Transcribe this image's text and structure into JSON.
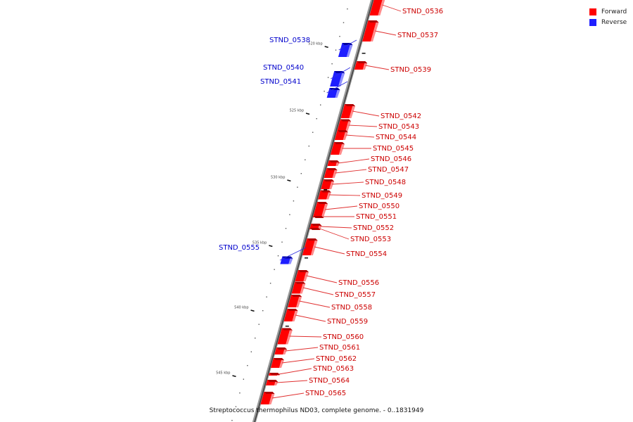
{
  "legend": {
    "forward_label": "Forward",
    "reverse_label": "Reverse",
    "forward_color": "#ff0000",
    "reverse_color": "#1e1eff"
  },
  "caption": "Streptococcus thermophilus ND03, complete genome. - 0..1831949",
  "ticks": [
    "520 kbp",
    "525 kbp",
    "530 kbp",
    "535 kbp",
    "540 kbp",
    "545 kbp"
  ],
  "genes": [
    {
      "name": "STND_0536",
      "strand": "forward"
    },
    {
      "name": "STND_0537",
      "strand": "forward"
    },
    {
      "name": "STND_0538",
      "strand": "reverse"
    },
    {
      "name": "STND_0539",
      "strand": "forward"
    },
    {
      "name": "STND_0540",
      "strand": "reverse"
    },
    {
      "name": "STND_0541",
      "strand": "reverse"
    },
    {
      "name": "STND_0542",
      "strand": "forward"
    },
    {
      "name": "STND_0543",
      "strand": "forward"
    },
    {
      "name": "STND_0544",
      "strand": "forward"
    },
    {
      "name": "STND_0545",
      "strand": "forward"
    },
    {
      "name": "STND_0546",
      "strand": "forward"
    },
    {
      "name": "STND_0547",
      "strand": "forward"
    },
    {
      "name": "STND_0548",
      "strand": "forward"
    },
    {
      "name": "STND_0549",
      "strand": "forward"
    },
    {
      "name": "STND_0550",
      "strand": "forward"
    },
    {
      "name": "STND_0551",
      "strand": "forward"
    },
    {
      "name": "STND_0552",
      "strand": "forward"
    },
    {
      "name": "STND_0553",
      "strand": "forward"
    },
    {
      "name": "STND_0554",
      "strand": "forward"
    },
    {
      "name": "STND_0555",
      "strand": "reverse"
    },
    {
      "name": "STND_0556",
      "strand": "forward"
    },
    {
      "name": "STND_0557",
      "strand": "forward"
    },
    {
      "name": "STND_0558",
      "strand": "forward"
    },
    {
      "name": "STND_0559",
      "strand": "forward"
    },
    {
      "name": "STND_0560",
      "strand": "forward"
    },
    {
      "name": "STND_0561",
      "strand": "forward"
    },
    {
      "name": "STND_0562",
      "strand": "forward"
    },
    {
      "name": "STND_0563",
      "strand": "forward"
    },
    {
      "name": "STND_0564",
      "strand": "forward"
    },
    {
      "name": "STND_0565",
      "strand": "forward"
    }
  ]
}
